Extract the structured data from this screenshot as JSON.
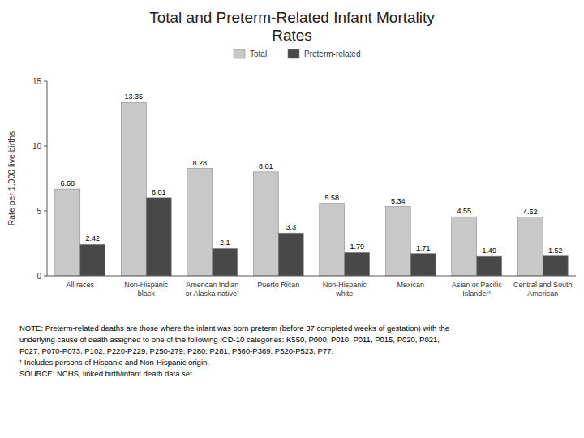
{
  "chart_data": {
    "type": "bar",
    "title": "Total and Preterm-Related Infant Mortality\nRates",
    "categories": [
      "All races",
      "Non-Hispanic\nblack",
      "American Indian\nor Alaska native¹",
      "Puerto Rican",
      "Non-Hispanic\nwhite",
      "Mexican",
      "Asian or Pacific\nIslander¹",
      "Central and South\nAmerican"
    ],
    "series": [
      {
        "name": "Total",
        "color": "#C8C8C8",
        "values": [
          6.68,
          13.35,
          8.28,
          8.01,
          5.58,
          5.34,
          4.55,
          4.52
        ]
      },
      {
        "name": "Preterm-related",
        "color": "#484848",
        "values": [
          2.42,
          6.01,
          2.1,
          3.3,
          1.79,
          1.71,
          1.49,
          1.52
        ]
      }
    ],
    "y_label": "Rate per 1,000 live births",
    "ylim": [
      0,
      15
    ],
    "yticks": [
      0,
      5,
      10,
      15
    ],
    "grid": false,
    "legend": "top",
    "data_labels": true,
    "annotations": [
      "NOTE: Preterm-related deaths are those where the infant was born preterm (before 37 completed weeks of gestation) with the",
      "underlying cause of death assigned to one of the following ICD-10 categories: K550, P000, P010, P011, P015, P020, P021,",
      "P027, P070-P073, P102, P220-P229, P250-279, P280, P281, P360-P369, P520-P523, P77.",
      "¹ Includes persons of Hispanic and Non-Hispanic origin.",
      "SOURCE: NCHS, linked birth/infant death data set."
    ]
  }
}
